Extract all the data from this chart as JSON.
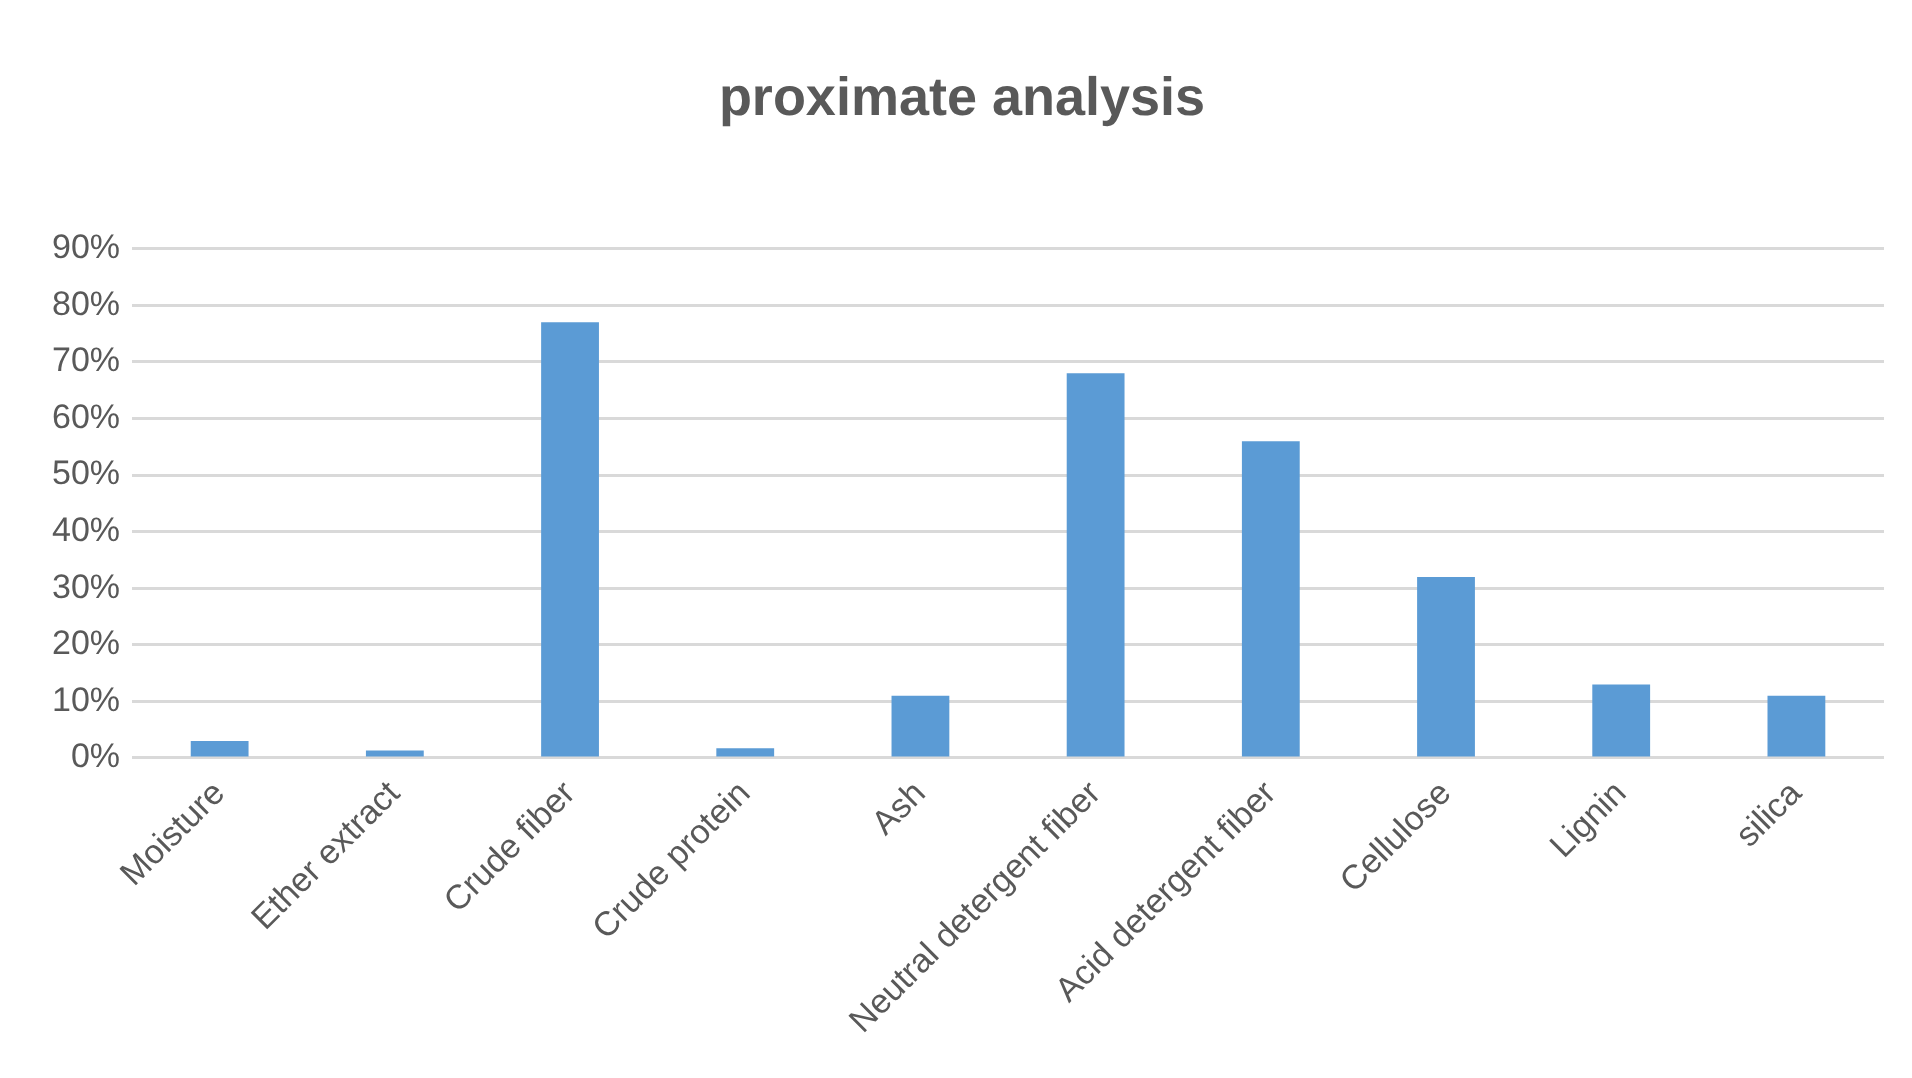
{
  "chart_data": {
    "type": "bar",
    "title": "proximate analysis",
    "categories": [
      "Moisture",
      "Ether extract",
      "Crude fiber",
      "Crude protein",
      "Ash",
      "Neutral detergent fiber",
      "Acid detergent fiber",
      "Cellulose",
      "Lignin",
      "silica"
    ],
    "values": [
      3,
      1.3,
      77,
      1.7,
      11,
      68,
      56,
      32,
      13,
      11
    ],
    "color": "#5b9bd5",
    "ylim": [
      0,
      90
    ],
    "yticks": [
      {
        "value": 0,
        "label": "0%"
      },
      {
        "value": 10,
        "label": "10%"
      },
      {
        "value": 20,
        "label": "20%"
      },
      {
        "value": 30,
        "label": "30%"
      },
      {
        "value": 40,
        "label": "40%"
      },
      {
        "value": 50,
        "label": "50%"
      },
      {
        "value": 60,
        "label": "60%"
      },
      {
        "value": 70,
        "label": "70%"
      },
      {
        "value": 80,
        "label": "80%"
      },
      {
        "value": 90,
        "label": "90%"
      }
    ],
    "grid": "y",
    "legend": false
  }
}
